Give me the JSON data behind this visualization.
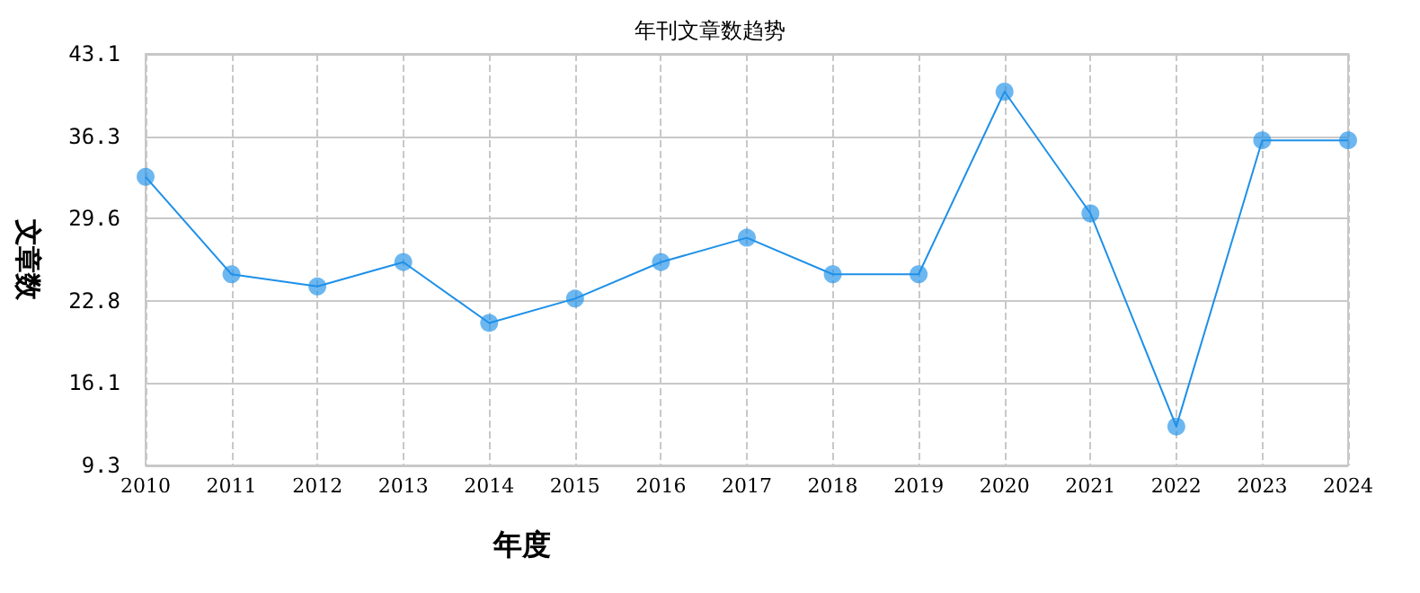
{
  "chart_data": {
    "type": "line",
    "title": "年刊文章数趋势",
    "xlabel": "年度",
    "ylabel": "文章数",
    "categories": [
      "2010",
      "2011",
      "2012",
      "2013",
      "2014",
      "2015",
      "2016",
      "2017",
      "2018",
      "2019",
      "2020",
      "2021",
      "2022",
      "2023",
      "2024"
    ],
    "series": [
      {
        "color": "#1e90e8",
        "values": [
          33,
          25,
          24,
          26,
          21,
          23,
          26,
          28,
          25,
          25,
          40,
          30,
          12.5,
          36,
          36
        ]
      }
    ],
    "ylim": [
      9.3,
      43.1
    ],
    "yticks": [
      9.3,
      16.1,
      22.8,
      29.6,
      36.3,
      43.1
    ],
    "grid": true,
    "marker": "circle",
    "line_style": "solid"
  }
}
